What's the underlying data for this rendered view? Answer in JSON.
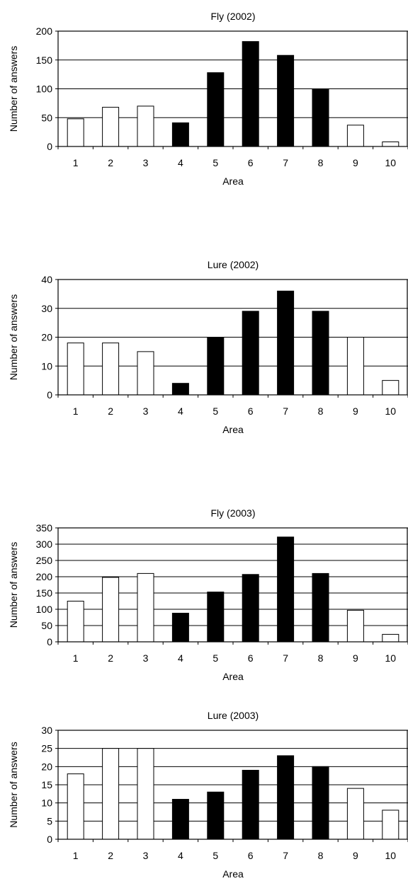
{
  "chart_data": [
    {
      "type": "bar",
      "title": "Fly (2002)",
      "xlabel": "Area",
      "ylabel": "Number of answers",
      "categories": [
        "1",
        "2",
        "3",
        "4",
        "5",
        "6",
        "7",
        "8",
        "9",
        "10"
      ],
      "values": [
        48,
        68,
        70,
        41,
        128,
        182,
        158,
        100,
        37,
        8
      ],
      "bar_fill": [
        "white",
        "white",
        "white",
        "black",
        "black",
        "black",
        "black",
        "black",
        "white",
        "white"
      ],
      "ylim": [
        0,
        200
      ],
      "yticks": [
        0,
        50,
        100,
        150,
        200
      ],
      "grid": true
    },
    {
      "type": "bar",
      "title": "Lure (2002)",
      "xlabel": "Area",
      "ylabel": "Number of answers",
      "categories": [
        "1",
        "2",
        "3",
        "4",
        "5",
        "6",
        "7",
        "8",
        "9",
        "10"
      ],
      "values": [
        18,
        18,
        15,
        4,
        20,
        29,
        36,
        29,
        20,
        5
      ],
      "bar_fill": [
        "white",
        "white",
        "white",
        "black",
        "black",
        "black",
        "black",
        "black",
        "white",
        "white"
      ],
      "ylim": [
        0,
        40
      ],
      "yticks": [
        0,
        10,
        20,
        30,
        40
      ],
      "grid": true
    },
    {
      "type": "bar",
      "title": "Fly (2003)",
      "xlabel": "Area",
      "ylabel": "Number of answers",
      "categories": [
        "1",
        "2",
        "3",
        "4",
        "5",
        "6",
        "7",
        "8",
        "9",
        "10"
      ],
      "values": [
        125,
        198,
        210,
        88,
        153,
        207,
        322,
        210,
        97,
        23
      ],
      "bar_fill": [
        "white",
        "white",
        "white",
        "black",
        "black",
        "black",
        "black",
        "black",
        "white",
        "white"
      ],
      "ylim": [
        0,
        350
      ],
      "yticks": [
        0,
        50,
        100,
        150,
        200,
        250,
        300,
        350
      ],
      "grid": true
    },
    {
      "type": "bar",
      "title": "Lure (2003)",
      "xlabel": "Area",
      "ylabel": "Number of answers",
      "categories": [
        "1",
        "2",
        "3",
        "4",
        "5",
        "6",
        "7",
        "8",
        "9",
        "10"
      ],
      "values": [
        18,
        25,
        25,
        11,
        13,
        19,
        23,
        20,
        14,
        8
      ],
      "bar_fill": [
        "white",
        "white",
        "white",
        "black",
        "black",
        "black",
        "black",
        "black",
        "white",
        "white"
      ],
      "ylim": [
        0,
        30
      ],
      "yticks": [
        0,
        5,
        10,
        15,
        20,
        25,
        30
      ],
      "grid": true
    }
  ]
}
